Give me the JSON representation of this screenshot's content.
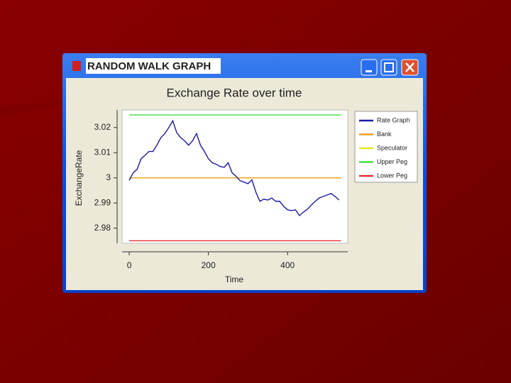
{
  "window": {
    "title": "RANDOM WALK GRAPH"
  },
  "chart_data": {
    "type": "line",
    "title": "Exchange Rate over time",
    "x_label": "Time",
    "y_label": "ExchangeRate",
    "xlim": [
      -18,
      552
    ],
    "ylim": [
      2.974,
      3.027
    ],
    "xticks": [
      0,
      200,
      400
    ],
    "yticks": [
      2.98,
      2.99,
      3,
      3.01,
      3.02
    ],
    "grid": false,
    "legend": "right",
    "series": [
      {
        "name": "Rate Graph",
        "color": "#1a1aa8",
        "x": [
          0,
          10,
          20,
          30,
          40,
          50,
          60,
          70,
          80,
          90,
          100,
          110,
          120,
          130,
          140,
          150,
          160,
          170,
          180,
          190,
          200,
          210,
          220,
          230,
          240,
          250,
          260,
          270,
          280,
          290,
          300,
          310,
          320,
          330,
          340,
          350,
          360,
          370,
          380,
          390,
          400,
          410,
          420,
          430,
          440,
          450,
          460,
          470,
          480,
          490,
          500,
          510,
          520,
          530
        ],
        "values": [
          2.999,
          3.002,
          3.0034,
          3.0076,
          3.009,
          3.0105,
          3.0105,
          3.013,
          3.016,
          3.0176,
          3.02,
          3.0227,
          3.018,
          3.016,
          3.0147,
          3.013,
          3.0147,
          3.0176,
          3.013,
          3.0105,
          3.0076,
          3.006,
          3.0054,
          3.0045,
          3.0042,
          3.006,
          3.002,
          3.0006,
          2.9989,
          2.9983,
          2.9977,
          2.9992,
          2.9943,
          2.9907,
          2.9915,
          2.9912,
          2.992,
          2.9907,
          2.9907,
          2.9887,
          2.9873,
          2.987,
          2.9873,
          2.985,
          2.9864,
          2.9875,
          2.9892,
          2.9907,
          2.992,
          2.9926,
          2.9932,
          2.9938,
          2.9926,
          2.9912
        ]
      },
      {
        "name": "Bank",
        "color": "#e8a020",
        "x": [
          0,
          535
        ],
        "values": [
          3,
          3
        ]
      },
      {
        "name": "Speculator",
        "color": "#e8e820",
        "x": [
          0,
          535
        ],
        "values": [
          3,
          3
        ]
      },
      {
        "name": "Upper Peg",
        "color": "#44dd44",
        "x": [
          0,
          535
        ],
        "values": [
          3.025,
          3.025
        ]
      },
      {
        "name": "Lower Peg",
        "color": "#e83030",
        "x": [
          0,
          535
        ],
        "values": [
          2.975,
          2.975
        ]
      }
    ]
  }
}
